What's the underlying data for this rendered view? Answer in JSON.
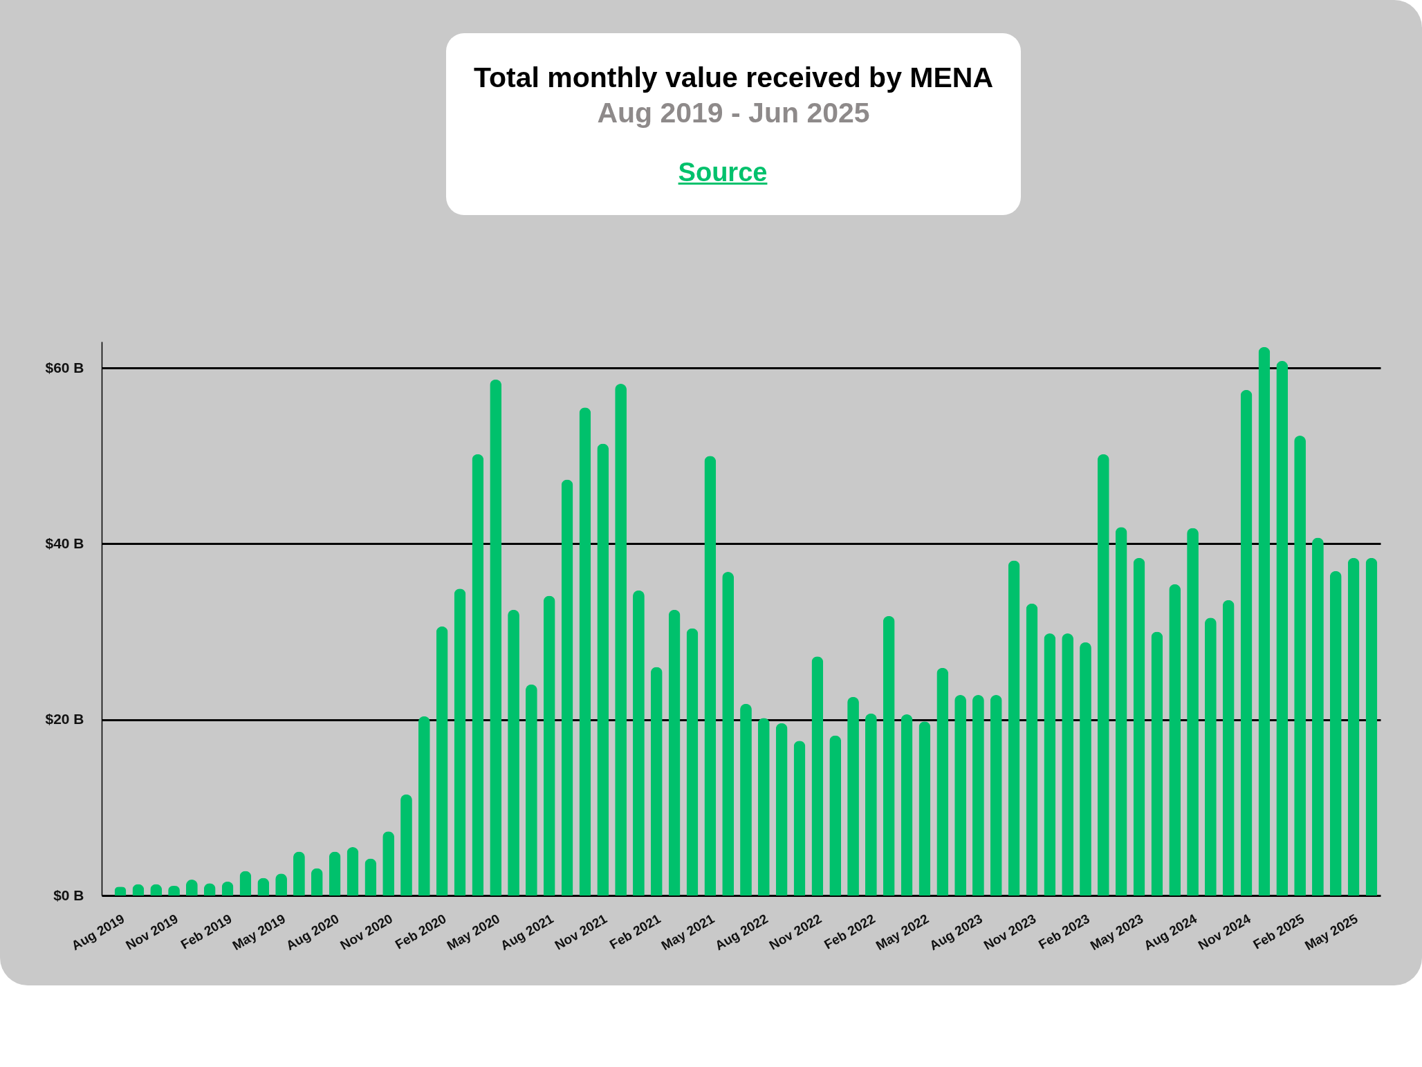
{
  "chart_data": {
    "type": "bar",
    "title": "Total monthly value received by MENA",
    "subtitle": "Aug 2019 - Jun 2025",
    "annotations": [
      "Source"
    ],
    "categories": [
      "Aug 2019",
      null,
      null,
      "Nov 2019",
      null,
      null,
      "Feb 2019",
      null,
      null,
      "May 2019",
      null,
      null,
      "Aug 2020",
      null,
      null,
      "Nov 2020",
      null,
      null,
      "Feb 2020",
      null,
      null,
      "May 2020",
      null,
      null,
      "Aug 2021",
      null,
      null,
      "Nov 2021",
      null,
      null,
      "Feb 2021",
      null,
      null,
      "May 2021",
      null,
      null,
      "Aug 2022",
      null,
      null,
      "Nov 2022",
      null,
      null,
      "Feb 2022",
      null,
      null,
      "May 2022",
      null,
      null,
      "Aug 2023",
      null,
      null,
      "Nov 2023",
      null,
      null,
      "Feb 2023",
      null,
      null,
      "May 2023",
      null,
      null,
      "Aug 2024",
      null,
      null,
      "Nov 2024",
      null,
      null,
      "Feb 2025",
      null,
      null,
      "May 2025",
      null
    ],
    "values": [
      1.0,
      1.3,
      1.3,
      1.1,
      1.8,
      1.4,
      1.6,
      2.8,
      2.0,
      2.5,
      5.0,
      3.1,
      5.0,
      5.5,
      4.2,
      7.3,
      11.5,
      20.4,
      30.6,
      34.9,
      50.2,
      58.7,
      32.5,
      24.0,
      34.1,
      47.3,
      55.5,
      51.4,
      58.2,
      34.7,
      26.0,
      32.5,
      30.4,
      50.0,
      36.8,
      21.8,
      20.2,
      19.6,
      17.6,
      27.2,
      18.2,
      22.6,
      20.7,
      31.8,
      20.6,
      19.8,
      25.9,
      22.8,
      22.8,
      22.8,
      38.1,
      33.2,
      29.8,
      29.8,
      28.8,
      50.2,
      41.9,
      38.4,
      30.0,
      35.4,
      41.8,
      31.6,
      33.6,
      57.5,
      62.4,
      60.8,
      52.3,
      40.7,
      36.9,
      38.4,
      38.4
    ],
    "color": "#00c16c",
    "ylim": [
      0,
      63
    ],
    "yticks": [
      {
        "value": 0,
        "label": "$0 B"
      },
      {
        "value": 20,
        "label": "$20 B"
      },
      {
        "value": 40,
        "label": "$40 B"
      },
      {
        "value": 60,
        "label": "$60 B"
      }
    ],
    "grid": "y"
  }
}
